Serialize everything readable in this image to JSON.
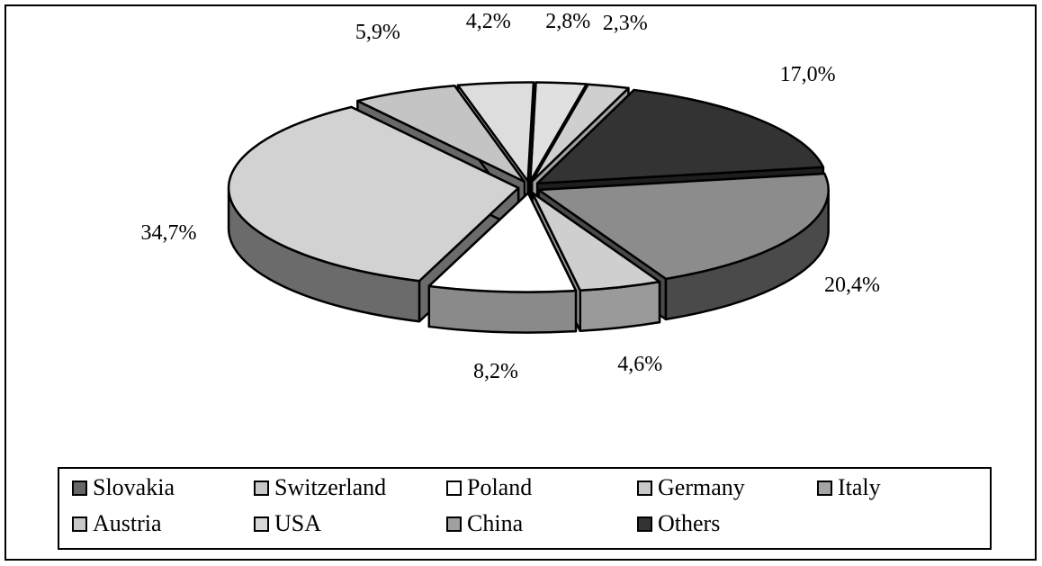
{
  "chart_data": {
    "type": "pie",
    "title": "",
    "slices": [
      {
        "name": "Slovakia",
        "value": 34.7,
        "label": "34,7%",
        "color": "#6b6b6b",
        "top": "#d2d2d2"
      },
      {
        "name": "Switzerland",
        "value": 5.9,
        "label": "5,9%",
        "color": "#686868",
        "top": "#c4c4c4"
      },
      {
        "name": "Poland",
        "value": 4.2,
        "label": "4,2%",
        "color": "#bdbdbd",
        "top": "#dddddd"
      },
      {
        "name": "Germany",
        "value": 2.8,
        "label": "2,8%",
        "color": "#a8a8a8",
        "top": "#e0e0e0"
      },
      {
        "name": "Italy",
        "value": 2.3,
        "label": "2,3%",
        "color": "#a0a0a0",
        "top": "#cfcfcf"
      },
      {
        "name": "Austria",
        "value": 17.0,
        "label": "17,0%",
        "color": "#1e1e1e",
        "top": "#333333"
      },
      {
        "name": "USA",
        "value": 20.4,
        "label": "20,4%",
        "color": "#4a4a4a",
        "top": "#8c8c8c"
      },
      {
        "name": "China",
        "value": 4.6,
        "label": "4,6%",
        "color": "#9a9a9a",
        "top": "#cfcfcf"
      },
      {
        "name": "Others",
        "value": 8.2,
        "label": "8,2%",
        "color": "#8a8a8a",
        "top": "#ffffff"
      }
    ],
    "legend": {
      "placement": "bottom",
      "items": [
        {
          "name": "Slovakia",
          "color": "#666666"
        },
        {
          "name": "Switzerland",
          "color": "#c8c8c8"
        },
        {
          "name": "Poland",
          "color": "#ffffff"
        },
        {
          "name": "Germany",
          "color": "#c8c8c8"
        },
        {
          "name": "Italy",
          "color": "#a5a5a5"
        },
        {
          "name": "Austria",
          "color": "#c8c8c8"
        },
        {
          "name": "USA",
          "color": "#d8d8d8"
        },
        {
          "name": "China",
          "color": "#a0a0a0"
        },
        {
          "name": "Others",
          "color": "#333333"
        }
      ]
    }
  }
}
